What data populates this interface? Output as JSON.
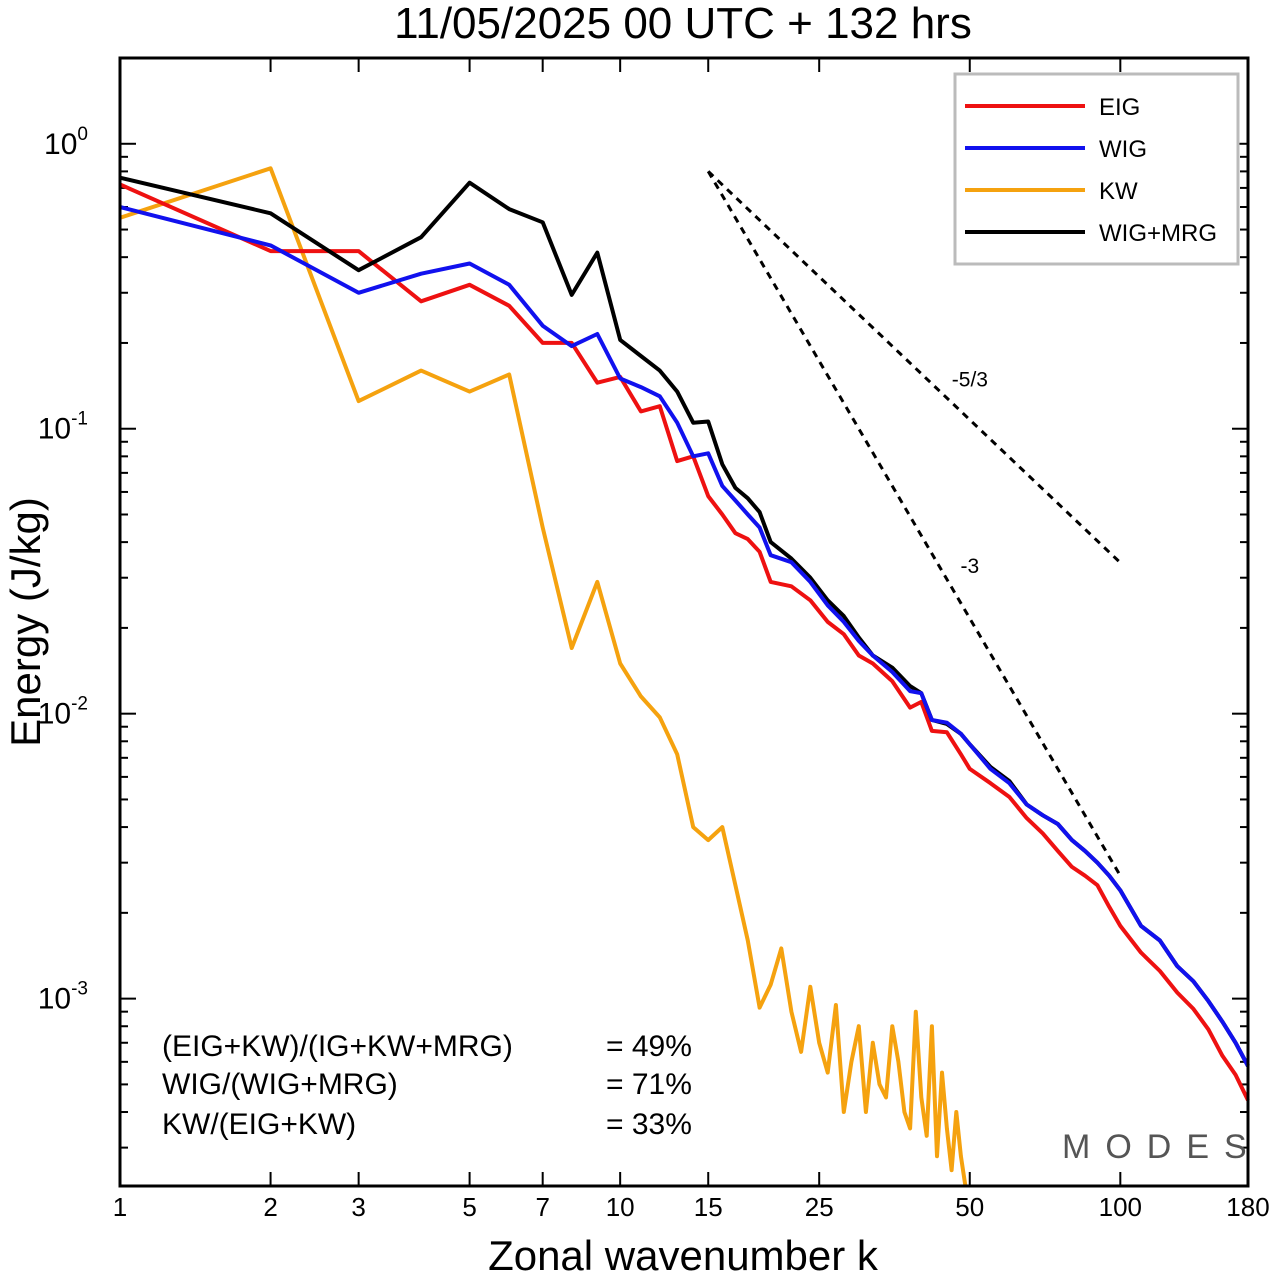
{
  "title": "11/05/2025  00 UTC  + 132 hrs",
  "brand": "MODES",
  "chart_data": {
    "type": "line",
    "title": "11/05/2025  00 UTC  + 132 hrs",
    "xlabel": "Zonal wavenumber k",
    "ylabel": "Energy (J/kg)",
    "x_scale": "log",
    "y_scale": "log",
    "xlim": [
      1,
      180
    ],
    "ylim": [
      0.00022,
      2.0
    ],
    "x_ticks": [
      1,
      2,
      3,
      5,
      7,
      10,
      15,
      25,
      50,
      100,
      180
    ],
    "x_tick_labels": [
      "1",
      "2",
      "3",
      "5",
      "7",
      "10",
      "15",
      "25",
      "50",
      "100",
      "180"
    ],
    "y_ticks": [
      {
        "value": 1,
        "base": "10",
        "exp": "0"
      },
      {
        "value": 0.1,
        "base": "10",
        "exp": "-1"
      },
      {
        "value": 0.01,
        "base": "10",
        "exp": "-2"
      },
      {
        "value": 0.001,
        "base": "10",
        "exp": "-3"
      }
    ],
    "grid": false,
    "legend_position": "top-right",
    "series": [
      {
        "name": "EIG",
        "color": "#ee1111",
        "points": [
          [
            1,
            0.72
          ],
          [
            2,
            0.42
          ],
          [
            3,
            0.42
          ],
          [
            4,
            0.28
          ],
          [
            5,
            0.32
          ],
          [
            6,
            0.27
          ],
          [
            7,
            0.2
          ],
          [
            8,
            0.2
          ],
          [
            9,
            0.145
          ],
          [
            10,
            0.152
          ],
          [
            11,
            0.115
          ],
          [
            12,
            0.12
          ],
          [
            13,
            0.077
          ],
          [
            14,
            0.08
          ],
          [
            15,
            0.058
          ],
          [
            16,
            0.05
          ],
          [
            17,
            0.043
          ],
          [
            18,
            0.041
          ],
          [
            19,
            0.037
          ],
          [
            20,
            0.029
          ],
          [
            22,
            0.028
          ],
          [
            24,
            0.025
          ],
          [
            26,
            0.021
          ],
          [
            28,
            0.019
          ],
          [
            30,
            0.016
          ],
          [
            32,
            0.015
          ],
          [
            35,
            0.013
          ],
          [
            38,
            0.0105
          ],
          [
            40,
            0.011
          ],
          [
            42,
            0.0087
          ],
          [
            45,
            0.0086
          ],
          [
            48,
            0.0072
          ],
          [
            50,
            0.0064
          ],
          [
            55,
            0.0057
          ],
          [
            60,
            0.0051
          ],
          [
            65,
            0.0043
          ],
          [
            70,
            0.0038
          ],
          [
            75,
            0.0033
          ],
          [
            80,
            0.0029
          ],
          [
            85,
            0.0027
          ],
          [
            90,
            0.0025
          ],
          [
            95,
            0.0021
          ],
          [
            100,
            0.0018
          ],
          [
            110,
            0.00145
          ],
          [
            120,
            0.00125
          ],
          [
            130,
            0.00105
          ],
          [
            140,
            0.00092
          ],
          [
            150,
            0.00078
          ],
          [
            160,
            0.00063
          ],
          [
            170,
            0.00054
          ],
          [
            180,
            0.00044
          ]
        ]
      },
      {
        "name": "WIG",
        "color": "#1111ee",
        "points": [
          [
            1,
            0.6
          ],
          [
            2,
            0.44
          ],
          [
            3,
            0.3
          ],
          [
            4,
            0.35
          ],
          [
            5,
            0.38
          ],
          [
            6,
            0.32
          ],
          [
            7,
            0.23
          ],
          [
            8,
            0.195
          ],
          [
            9,
            0.215
          ],
          [
            10,
            0.15
          ],
          [
            11,
            0.14
          ],
          [
            12,
            0.13
          ],
          [
            13,
            0.105
          ],
          [
            14,
            0.08
          ],
          [
            15,
            0.082
          ],
          [
            16,
            0.063
          ],
          [
            17,
            0.056
          ],
          [
            18,
            0.05
          ],
          [
            19,
            0.045
          ],
          [
            20,
            0.036
          ],
          [
            22,
            0.034
          ],
          [
            24,
            0.029
          ],
          [
            26,
            0.024
          ],
          [
            28,
            0.021
          ],
          [
            30,
            0.018
          ],
          [
            32,
            0.016
          ],
          [
            35,
            0.014
          ],
          [
            38,
            0.012
          ],
          [
            40,
            0.0118
          ],
          [
            42,
            0.0095
          ],
          [
            45,
            0.0093
          ],
          [
            48,
            0.0085
          ],
          [
            50,
            0.0078
          ],
          [
            55,
            0.0064
          ],
          [
            60,
            0.0057
          ],
          [
            65,
            0.0048
          ],
          [
            70,
            0.0044
          ],
          [
            75,
            0.0041
          ],
          [
            80,
            0.0036
          ],
          [
            85,
            0.0033
          ],
          [
            90,
            0.003
          ],
          [
            95,
            0.0027
          ],
          [
            100,
            0.0024
          ],
          [
            110,
            0.0018
          ],
          [
            120,
            0.0016
          ],
          [
            130,
            0.0013
          ],
          [
            140,
            0.00115
          ],
          [
            150,
            0.00098
          ],
          [
            160,
            0.00083
          ],
          [
            170,
            0.0007
          ],
          [
            180,
            0.00058
          ]
        ]
      },
      {
        "name": "KW",
        "color": "#f5a20f",
        "points": [
          [
            1,
            0.55
          ],
          [
            2,
            0.82
          ],
          [
            3,
            0.125
          ],
          [
            4,
            0.16
          ],
          [
            5,
            0.135
          ],
          [
            6,
            0.155
          ],
          [
            7,
            0.045
          ],
          [
            8,
            0.017
          ],
          [
            9,
            0.029
          ],
          [
            10,
            0.015
          ],
          [
            11,
            0.0115
          ],
          [
            12,
            0.0097
          ],
          [
            13,
            0.0072
          ],
          [
            14,
            0.004
          ],
          [
            15,
            0.0036
          ],
          [
            16,
            0.004
          ],
          [
            17,
            0.0025
          ],
          [
            18,
            0.0016
          ],
          [
            19,
            0.00093
          ],
          [
            20,
            0.00112
          ],
          [
            21,
            0.0015
          ],
          [
            22,
            0.0009
          ],
          [
            23,
            0.00065
          ],
          [
            24,
            0.0011
          ],
          [
            25,
            0.0007
          ],
          [
            26,
            0.00055
          ],
          [
            27,
            0.00095
          ],
          [
            28,
            0.0004
          ],
          [
            29,
            0.0006
          ],
          [
            30,
            0.0008
          ],
          [
            31,
            0.0004
          ],
          [
            32,
            0.0007
          ],
          [
            33,
            0.0005
          ],
          [
            34,
            0.00045
          ],
          [
            35,
            0.0008
          ],
          [
            36,
            0.0006
          ],
          [
            37,
            0.0004
          ],
          [
            38,
            0.00035
          ],
          [
            39,
            0.0009
          ],
          [
            40,
            0.00045
          ],
          [
            41,
            0.00033
          ],
          [
            42,
            0.0008
          ],
          [
            43,
            0.00028
          ],
          [
            44,
            0.00055
          ],
          [
            45,
            0.00035
          ],
          [
            46,
            0.00025
          ],
          [
            47,
            0.0004
          ],
          [
            48,
            0.00028
          ],
          [
            49,
            0.00022
          ]
        ]
      },
      {
        "name": "WIG+MRG",
        "color": "#000000",
        "points": [
          [
            1,
            0.76
          ],
          [
            2,
            0.57
          ],
          [
            3,
            0.36
          ],
          [
            4,
            0.47
          ],
          [
            5,
            0.73
          ],
          [
            6,
            0.59
          ],
          [
            7,
            0.53
          ],
          [
            8,
            0.295
          ],
          [
            9,
            0.415
          ],
          [
            10,
            0.205
          ],
          [
            11,
            0.18
          ],
          [
            12,
            0.16
          ],
          [
            13,
            0.135
          ],
          [
            14,
            0.105
          ],
          [
            15,
            0.106
          ],
          [
            16,
            0.075
          ],
          [
            17,
            0.062
          ],
          [
            18,
            0.057
          ],
          [
            19,
            0.051
          ],
          [
            20,
            0.04
          ],
          [
            22,
            0.035
          ],
          [
            24,
            0.03
          ],
          [
            26,
            0.025
          ],
          [
            28,
            0.022
          ],
          [
            30,
            0.0185
          ],
          [
            32,
            0.016
          ],
          [
            35,
            0.0145
          ],
          [
            38,
            0.0125
          ],
          [
            40,
            0.0118
          ],
          [
            42,
            0.0095
          ],
          [
            45,
            0.0092
          ],
          [
            48,
            0.0085
          ],
          [
            50,
            0.0078
          ],
          [
            55,
            0.0065
          ],
          [
            60,
            0.0058
          ],
          [
            65,
            0.0048
          ],
          [
            70,
            0.0044
          ],
          [
            75,
            0.0041
          ],
          [
            80,
            0.0036
          ],
          [
            85,
            0.0033
          ],
          [
            90,
            0.003
          ],
          [
            95,
            0.0027
          ],
          [
            100,
            0.0024
          ],
          [
            110,
            0.0018
          ],
          [
            120,
            0.0016
          ],
          [
            130,
            0.0013
          ],
          [
            140,
            0.00115
          ],
          [
            150,
            0.00098
          ],
          [
            160,
            0.00083
          ],
          [
            170,
            0.0007
          ],
          [
            180,
            0.00058
          ]
        ]
      }
    ],
    "reference_lines": [
      {
        "label": "-5/3",
        "slope": -1.6667,
        "k_start": 15,
        "e_start": 0.8,
        "k_end": 100
      },
      {
        "label": "-3",
        "slope": -3,
        "k_start": 15,
        "e_start": 0.8,
        "k_end": 100
      }
    ],
    "annotations": [
      {
        "label": "(EIG+KW)/(IG+KW+MRG)",
        "value": "= 49%"
      },
      {
        "label": "WIG/(WIG+MRG)",
        "value": "= 71%"
      },
      {
        "label": "KW/(EIG+KW)",
        "value": "= 33%"
      }
    ]
  }
}
